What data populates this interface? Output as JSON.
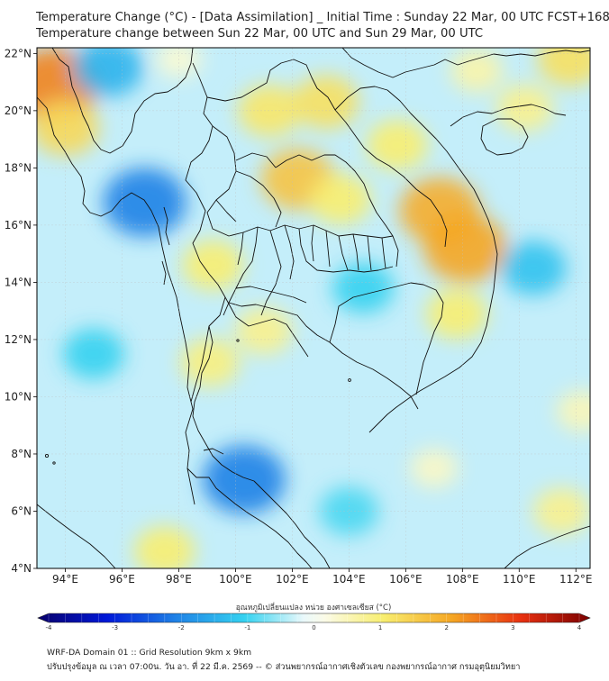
{
  "title_line1": "Temperature Change (°C) - [Data Assimilation] _ Initial Time : Sunday 22 Mar, 00 UTC FCST+168",
  "title_line2": "Temperature change between Sun 22 Mar, 00 UTC and Sun 29 Mar, 00 UTC",
  "map": {
    "lon_range": [
      93,
      112.5
    ],
    "lat_range": [
      4,
      22.2
    ],
    "lat_ticks": [
      {
        "value": 4,
        "label": "4°N"
      },
      {
        "value": 6,
        "label": "6°N"
      },
      {
        "value": 8,
        "label": "8°N"
      },
      {
        "value": 10,
        "label": "10°N"
      },
      {
        "value": 12,
        "label": "12°N"
      },
      {
        "value": 14,
        "label": "14°N"
      },
      {
        "value": 16,
        "label": "16°N"
      },
      {
        "value": 18,
        "label": "18°N"
      },
      {
        "value": 20,
        "label": "20°N"
      },
      {
        "value": 22,
        "label": "22°N"
      }
    ],
    "lon_ticks": [
      {
        "value": 94,
        "label": "94°E"
      },
      {
        "value": 96,
        "label": "96°E"
      },
      {
        "value": 98,
        "label": "98°E"
      },
      {
        "value": 100,
        "label": "100°E"
      },
      {
        "value": 102,
        "label": "102°E"
      },
      {
        "value": 104,
        "label": "104°E"
      },
      {
        "value": 106,
        "label": "106°E"
      },
      {
        "value": 108,
        "label": "108°E"
      },
      {
        "value": 110,
        "label": "110°E"
      },
      {
        "value": 112,
        "label": "112°E"
      }
    ],
    "background_color": "#c4eefa",
    "anomalies": [
      {
        "lon": 93.6,
        "lat": 20.9,
        "value": 2.3
      },
      {
        "lon": 94.0,
        "lat": 19.4,
        "value": 1.3
      },
      {
        "lon": 96.8,
        "lat": 16.8,
        "value": -2.0
      },
      {
        "lon": 95.5,
        "lat": 21.5,
        "value": -1.4
      },
      {
        "lon": 101.2,
        "lat": 20.0,
        "value": 1.1
      },
      {
        "lon": 103.2,
        "lat": 20.3,
        "value": 1.2
      },
      {
        "lon": 102.2,
        "lat": 17.6,
        "value": 1.6
      },
      {
        "lon": 103.7,
        "lat": 16.9,
        "value": 1.0
      },
      {
        "lon": 107.2,
        "lat": 16.5,
        "value": 1.9
      },
      {
        "lon": 108.1,
        "lat": 15.2,
        "value": 2.0
      },
      {
        "lon": 105.7,
        "lat": 18.8,
        "value": 1.0
      },
      {
        "lon": 107.8,
        "lat": 12.9,
        "value": 1.0
      },
      {
        "lon": 99.2,
        "lat": 14.6,
        "value": 1.0
      },
      {
        "lon": 99.1,
        "lat": 11.2,
        "value": 0.9
      },
      {
        "lon": 101.0,
        "lat": 12.3,
        "value": 0.8
      },
      {
        "lon": 110.2,
        "lat": 20.1,
        "value": 0.8
      },
      {
        "lon": 111.8,
        "lat": 21.8,
        "value": 1.2
      },
      {
        "lon": 108.5,
        "lat": 21.4,
        "value": 0.6
      },
      {
        "lon": 100.3,
        "lat": 7.1,
        "value": -2.0
      },
      {
        "lon": 104.5,
        "lat": 13.8,
        "value": -1.0
      },
      {
        "lon": 110.5,
        "lat": 14.5,
        "value": -1.2
      },
      {
        "lon": 95.0,
        "lat": 11.5,
        "value": -1.0
      },
      {
        "lon": 97.5,
        "lat": 4.6,
        "value": 1.0
      },
      {
        "lon": 111.5,
        "lat": 6.0,
        "value": 0.8
      },
      {
        "lon": 107.0,
        "lat": 7.5,
        "value": 0.4
      },
      {
        "lon": 104.0,
        "lat": 6.0,
        "value": -0.9
      },
      {
        "lon": 98.0,
        "lat": 21.8,
        "value": 0.3
      },
      {
        "lon": 112.2,
        "lat": 9.5,
        "value": 0.5
      }
    ],
    "boundary_color": "#111111"
  },
  "colorbar": {
    "title": "อุณหภูมิเปลี่ยนแปลง หน่วย องศาเซลเซียส (°C)",
    "min": -4,
    "max": 4,
    "tick_labels": [
      "-4",
      "-3",
      "-2",
      "-1",
      "0",
      "1",
      "2",
      "3",
      "4"
    ],
    "stops": [
      {
        "value": -4,
        "color": "#08006b"
      },
      {
        "value": -3,
        "color": "#0018d8"
      },
      {
        "value": -2,
        "color": "#1f82e6"
      },
      {
        "value": -1,
        "color": "#35d2f0"
      },
      {
        "value": -0.15,
        "color": "#eaf9fb"
      },
      {
        "value": 0.15,
        "color": "#fbfbe8"
      },
      {
        "value": 1,
        "color": "#f8ee70"
      },
      {
        "value": 2,
        "color": "#f5a623"
      },
      {
        "value": 3,
        "color": "#e83010"
      },
      {
        "value": 4,
        "color": "#7a0000"
      }
    ]
  },
  "footer_line1": "WRF-DA Domain 01 :: Grid Resolution 9km x 9km",
  "footer_line2": "ปรับปรุงข้อมูล ณ เวลา 07:00น. วัน อา. ที่ 22 มี.ค. 2569 -- © ส่วนพยากรณ์อากาศเชิงตัวเลข กองพยากรณ์อากาศ กรมอุตุนิยมวิทยา"
}
